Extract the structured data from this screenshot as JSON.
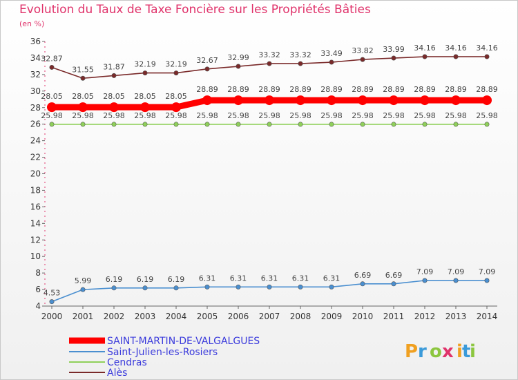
{
  "chart_data": {
    "type": "line",
    "title": "Evolution du Taux de Taxe Foncière sur les Propriétés Bâties",
    "unit": "(en %)",
    "x": [
      "2000",
      "2001",
      "2002",
      "2003",
      "2004",
      "2005",
      "2006",
      "2007",
      "2008",
      "2009",
      "2010",
      "2011",
      "2012",
      "2013",
      "2014"
    ],
    "ylim": [
      4,
      36
    ],
    "yticks": [
      4,
      6,
      8,
      10,
      12,
      14,
      16,
      18,
      20,
      22,
      24,
      26,
      28,
      30,
      32,
      34,
      36
    ],
    "grid": false,
    "legend_position": "bottom-left",
    "series": [
      {
        "name": "SAINT-MARTIN-DE-VALGALGUES",
        "color": "#ff0000",
        "values": [
          28.05,
          28.05,
          28.05,
          28.05,
          28.05,
          28.89,
          28.89,
          28.89,
          28.89,
          28.89,
          28.89,
          28.89,
          28.89,
          28.89,
          28.89
        ],
        "labels": [
          "28.05",
          "28.05",
          "28.05",
          "28.05",
          "28.05",
          "28.89",
          "28.89",
          "28.89",
          "28.89",
          "28.89",
          "28.89",
          "28.89",
          "28.89",
          "28.89",
          "28.89"
        ]
      },
      {
        "name": "Saint-Julien-les-Rosiers",
        "color": "#4a8fd0",
        "values": [
          4.53,
          5.99,
          6.19,
          6.19,
          6.19,
          6.31,
          6.31,
          6.31,
          6.31,
          6.31,
          6.69,
          6.69,
          7.09,
          7.09,
          7.09
        ],
        "labels": [
          "4.53",
          "5.99",
          "6.19",
          "6.19",
          "6.19",
          "6.31",
          "6.31",
          "6.31",
          "6.31",
          "6.31",
          "6.69",
          "6.69",
          "7.09",
          "7.09",
          "7.09"
        ]
      },
      {
        "name": "Cendras",
        "color": "#8fd05a",
        "values": [
          25.98,
          25.98,
          25.98,
          25.98,
          25.98,
          25.98,
          25.98,
          25.98,
          25.98,
          25.98,
          25.98,
          25.98,
          25.98,
          25.98,
          25.98
        ],
        "labels": [
          "25.98",
          "25.98",
          "25.98",
          "25.98",
          "25.98",
          "25.98",
          "25.98",
          "25.98",
          "25.98",
          "25.98",
          "25.98",
          "25.98",
          "25.98",
          "25.98",
          "25.98"
        ]
      },
      {
        "name": "Alès",
        "color": "#7a2a2a",
        "values": [
          32.87,
          31.55,
          31.87,
          32.19,
          32.19,
          32.67,
          32.99,
          33.32,
          33.32,
          33.49,
          33.82,
          33.99,
          34.16,
          34.16,
          34.16
        ],
        "labels": [
          "32.87",
          "31.55",
          "31.87",
          "32.19",
          "32.19",
          "32.67",
          "32.99",
          "33.32",
          "33.32",
          "33.49",
          "33.82",
          "33.99",
          "34.16",
          "34.16",
          "34.16"
        ]
      }
    ]
  },
  "logo": {
    "letters": [
      "P",
      "r",
      "o",
      "x",
      "i",
      "t",
      "i"
    ],
    "colors": [
      "#f0a020",
      "#3a9ad9",
      "#8cc63f",
      "#e0336b",
      "#f0a020",
      "#3a9ad9",
      "#8cc63f"
    ]
  }
}
